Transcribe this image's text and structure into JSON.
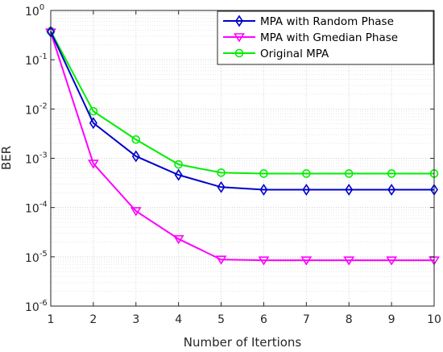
{
  "chart_data": {
    "type": "line",
    "xlabel": "Number of Itertions",
    "ylabel": "BER",
    "xlim": [
      1,
      10
    ],
    "ylim": [
      1e-06,
      1
    ],
    "yscale": "log",
    "x_ticks": [
      "1",
      "2",
      "3",
      "4",
      "5",
      "6",
      "7",
      "8",
      "9",
      "10"
    ],
    "y_ticks": [
      {
        "base": "10",
        "exp": "-6"
      },
      {
        "base": "10",
        "exp": "-5"
      },
      {
        "base": "10",
        "exp": "-4"
      },
      {
        "base": "10",
        "exp": "-3"
      },
      {
        "base": "10",
        "exp": "-2"
      },
      {
        "base": "10",
        "exp": "-1"
      },
      {
        "base": "10",
        "exp": "0"
      }
    ],
    "grid": true,
    "minor_grid": true,
    "legend_position": "top-right",
    "x": [
      1,
      2,
      3,
      4,
      5,
      6,
      7,
      8,
      9,
      10
    ],
    "series": [
      {
        "name": "MPA with Random Phase",
        "color": "#0000cc",
        "marker": "diamond",
        "values": [
          0.37,
          0.0052,
          0.0011,
          0.00046,
          0.00026,
          0.00023,
          0.00023,
          0.00023,
          0.00023,
          0.00023
        ]
      },
      {
        "name": "MPA with Gmedian Phase",
        "color": "#ff00ff",
        "marker": "triangle-down",
        "values": [
          0.36,
          0.00078,
          8.5e-05,
          2.3e-05,
          8.8e-06,
          8.5e-06,
          8.5e-06,
          8.5e-06,
          8.5e-06,
          8.5e-06
        ]
      },
      {
        "name": "Original MPA",
        "color": "#00ee00",
        "marker": "circle",
        "values": [
          0.38,
          0.009,
          0.0024,
          0.00075,
          0.00051,
          0.00049,
          0.00049,
          0.00049,
          0.00049,
          0.00049
        ]
      }
    ]
  }
}
